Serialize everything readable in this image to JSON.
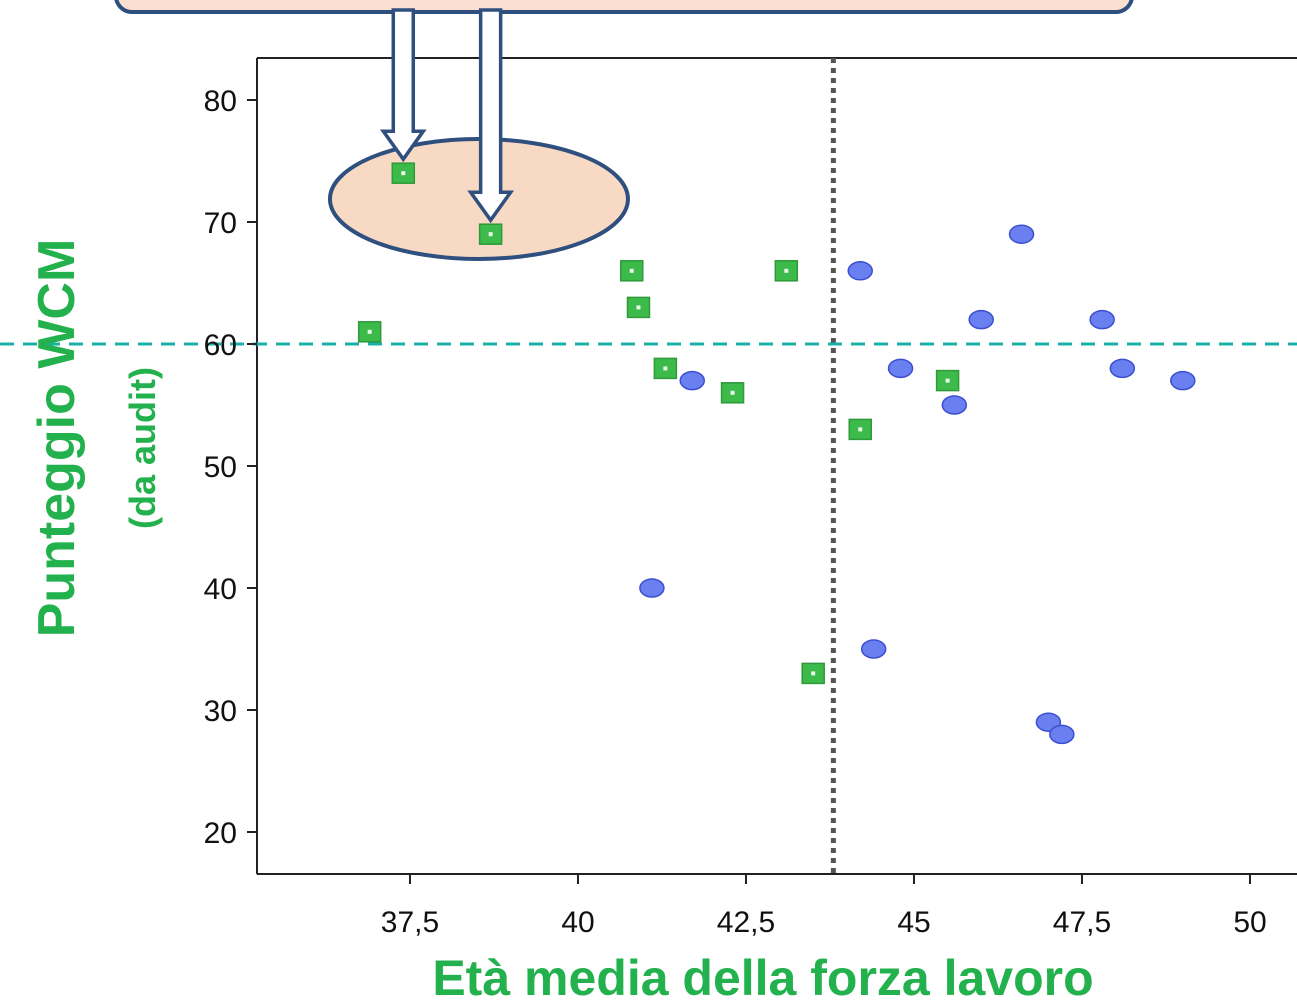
{
  "chart_data": {
    "type": "scatter",
    "title": "",
    "xlabel": "Età media della forza lavoro",
    "ylabel": "Punteggio WCM",
    "ylabel_sub": "(da audit)",
    "xlim": [
      35.3,
      50.7
    ],
    "ylim": [
      16.5,
      83.5
    ],
    "x_ticks": [
      37.5,
      40,
      42.5,
      45,
      47.5,
      50
    ],
    "x_tick_labels": [
      "37,5",
      "40",
      "42,5",
      "45",
      "47,5",
      "50"
    ],
    "y_ticks": [
      20,
      30,
      40,
      50,
      60,
      70,
      80
    ],
    "y_tick_labels": [
      "20",
      "30",
      "40",
      "50",
      "60",
      "70",
      "80"
    ],
    "reference_lines": {
      "vertical_x": 43.8,
      "horizontal_y": 60,
      "vertical_color": "#555555",
      "horizontal_color": "#1ab0a8"
    },
    "series": [
      {
        "marker": "square",
        "color": "#3dbb4a",
        "points": [
          {
            "x": 37.4,
            "y": 74
          },
          {
            "x": 38.7,
            "y": 69
          },
          {
            "x": 36.9,
            "y": 61
          },
          {
            "x": 40.8,
            "y": 66
          },
          {
            "x": 40.9,
            "y": 63
          },
          {
            "x": 41.3,
            "y": 58
          },
          {
            "x": 42.3,
            "y": 56
          },
          {
            "x": 43.1,
            "y": 66
          },
          {
            "x": 43.5,
            "y": 33
          },
          {
            "x": 44.2,
            "y": 53
          },
          {
            "x": 45.5,
            "y": 57
          }
        ]
      },
      {
        "marker": "circle",
        "color": "#6a7ff0",
        "points": [
          {
            "x": 41.7,
            "y": 57
          },
          {
            "x": 41.1,
            "y": 40
          },
          {
            "x": 44.2,
            "y": 66
          },
          {
            "x": 44.4,
            "y": 35
          },
          {
            "x": 44.8,
            "y": 58
          },
          {
            "x": 45.6,
            "y": 55
          },
          {
            "x": 46.0,
            "y": 62
          },
          {
            "x": 46.6,
            "y": 69
          },
          {
            "x": 47.0,
            "y": 29
          },
          {
            "x": 47.2,
            "y": 28
          },
          {
            "x": 47.8,
            "y": 62
          },
          {
            "x": 48.1,
            "y": 58
          },
          {
            "x": 49.0,
            "y": 57
          }
        ]
      }
    ],
    "callout": {
      "highlighted_x": [
        37.4,
        38.7
      ],
      "box_fill": "#fbe0d2",
      "box_stroke": "#2f4f7f",
      "ellipse_fill": "#f8d9c4"
    }
  }
}
